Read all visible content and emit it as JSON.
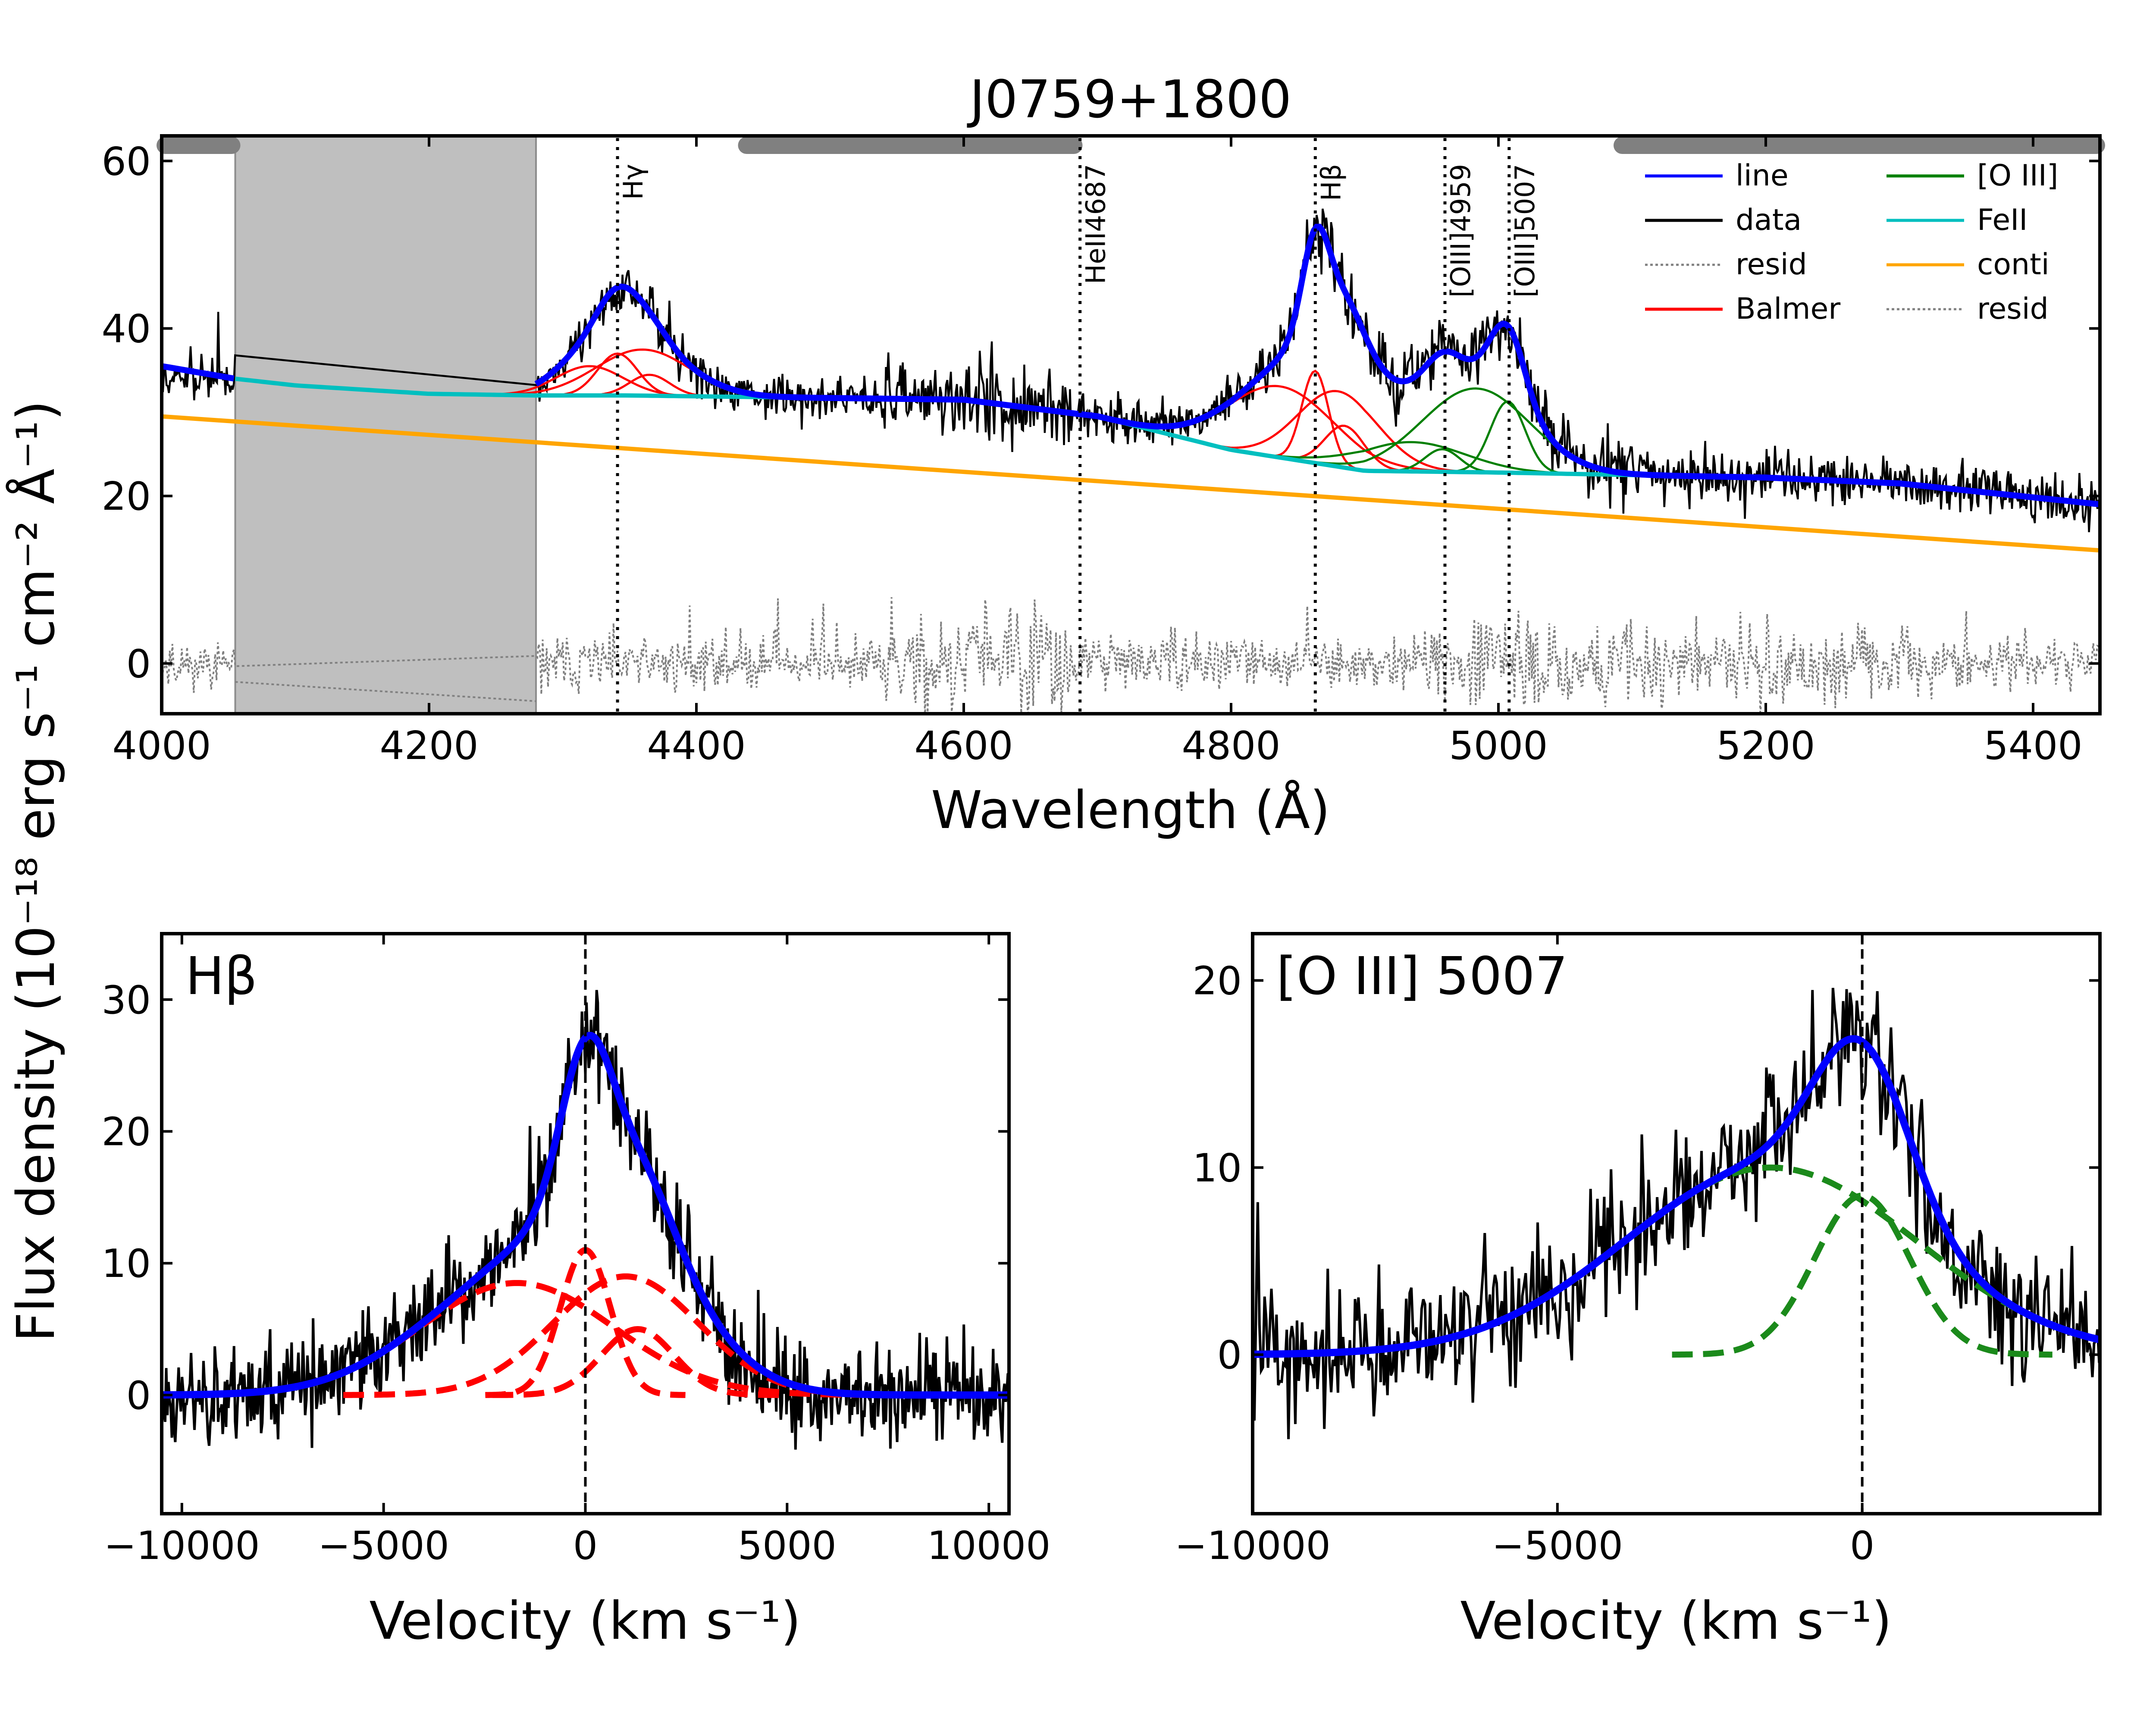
{
  "figure": {
    "shared_ylabel": "Flux density (10⁻¹⁸ erg s⁻¹ cm⁻² Å⁻¹)"
  },
  "chart_data": [
    {
      "id": "top",
      "type": "line",
      "title": "J0759+1800",
      "xlabel": "Wavelength (Å)",
      "ylabel": "",
      "xlim": [
        4000,
        5450
      ],
      "ylim": [
        -6,
        63
      ],
      "xticks": [
        4000,
        4200,
        4400,
        4600,
        4800,
        5000,
        5200,
        5400
      ],
      "yticks": [
        0,
        20,
        40,
        60
      ],
      "grid": false,
      "masked_region": [
        4055,
        4280
      ],
      "fit_windows": [
        [
          4000,
          4055
        ],
        [
          4435,
          4685
        ],
        [
          5090,
          5450
        ]
      ],
      "line_markers": [
        {
          "label": "Hγ",
          "x": 4341
        },
        {
          "label": "HeII4687",
          "x": 4687
        },
        {
          "label": "Hβ",
          "x": 4863
        },
        {
          "label": "[OIII]4959",
          "x": 4960
        },
        {
          "label": "[OIII]5007",
          "x": 5008
        }
      ],
      "legend": {
        "placement": "top-right",
        "entries": [
          {
            "label": "line",
            "color": "#0000ff",
            "style": "solid"
          },
          {
            "label": "data",
            "color": "#000000",
            "style": "solid"
          },
          {
            "label": "resid",
            "color": "#808080",
            "style": "dotted"
          },
          {
            "label": "Balmer",
            "color": "#ff0000",
            "style": "solid"
          },
          {
            "label": "[O III]",
            "color": "#008000",
            "style": "solid"
          },
          {
            "label": "FeII",
            "color": "#00bfbf",
            "style": "solid"
          },
          {
            "label": "conti",
            "color": "#ffa500",
            "style": "solid"
          },
          {
            "label": "resid",
            "color": "#808080",
            "style": "dotted"
          }
        ]
      },
      "components": {
        "continuum": {
          "x": [
            4000,
            5450
          ],
          "y": [
            29.5,
            13.5
          ],
          "color": "#ffa500"
        },
        "feii_pseudo_continuum": {
          "x": [
            4055,
            4100,
            4200,
            4280,
            4350,
            4450,
            4600,
            4700,
            4800,
            4900,
            5000,
            5100,
            5200,
            5300,
            5450
          ],
          "y": [
            34.0,
            33.2,
            32.2,
            32.0,
            32.0,
            31.8,
            31.5,
            29.5,
            25.5,
            23.0,
            22.8,
            22.5,
            22.2,
            21.5,
            19.0
          ],
          "color": "#00bfbf"
        },
        "balmer_gaussians": [
          {
            "line": "Hγ",
            "center": 4320,
            "amplitude": 3.5,
            "sigma": 25
          },
          {
            "line": "Hγ",
            "center": 4341,
            "amplitude": 5.0,
            "sigma": 15
          },
          {
            "line": "Hγ",
            "center": 4360,
            "amplitude": 5.5,
            "sigma": 35
          },
          {
            "line": "Hγ",
            "center": 4365,
            "amplitude": 2.5,
            "sigma": 15
          },
          {
            "line": "Hβ",
            "center": 4837,
            "amplitude": 8.5,
            "sigma": 40
          },
          {
            "line": "Hβ",
            "center": 4863,
            "amplitude": 11.0,
            "sigma": 10
          },
          {
            "line": "Hβ",
            "center": 4880,
            "amplitude": 9.0,
            "sigma": 30
          },
          {
            "line": "Hβ",
            "center": 4885,
            "amplitude": 5.0,
            "sigma": 15
          }
        ],
        "oiii_gaussians": [
          {
            "line": "[OIII]4959",
            "center": 4935,
            "amplitude": 3.5,
            "sigma": 40
          },
          {
            "line": "[OIII]4959",
            "center": 4958,
            "amplitude": 2.7,
            "sigma": 13
          },
          {
            "line": "[OIII]5007",
            "center": 4983,
            "amplitude": 10.0,
            "sigma": 40
          },
          {
            "line": "[OIII]5007",
            "center": 5007,
            "amplitude": 8.5,
            "sigma": 13
          }
        ]
      }
    },
    {
      "id": "hbeta",
      "type": "line",
      "title": "Hβ",
      "xlabel": "Velocity (km s⁻¹)",
      "ylabel": "",
      "xlim": [
        -10500,
        10500
      ],
      "ylim": [
        -9,
        35
      ],
      "xticks": [
        -10000,
        -5000,
        0,
        5000,
        10000
      ],
      "xtick_labels": [
        "−10000",
        "−5000",
        "0",
        "5000",
        "10000"
      ],
      "yticks": [
        0,
        10,
        20,
        30
      ],
      "grid": false,
      "zero_velocity_line": 0,
      "gaussians": [
        {
          "center": -1700,
          "amplitude": 8.5,
          "sigma": 2400
        },
        {
          "center": 0,
          "amplitude": 11.0,
          "sigma": 620
        },
        {
          "center": 1000,
          "amplitude": 9.0,
          "sigma": 1800
        },
        {
          "center": 1300,
          "amplitude": 5.0,
          "sigma": 900
        }
      ],
      "peak": {
        "x": 250,
        "y": 30
      }
    },
    {
      "id": "oiii",
      "type": "line",
      "title": "[O III] 5007",
      "xlabel": "Velocity (km s⁻¹)",
      "ylabel": "",
      "xlim": [
        -10000,
        3900
      ],
      "ylim": [
        -8.5,
        22.5
      ],
      "xticks": [
        -10000,
        -5000,
        0
      ],
      "xtick_labels": [
        "−10000",
        "−5000",
        "0"
      ],
      "yticks": [
        0,
        10,
        20
      ],
      "grid": false,
      "zero_velocity_line": 0,
      "gaussians": [
        {
          "center": -1500,
          "amplitude": 10.0,
          "sigma": 2400
        },
        {
          "center": 0,
          "amplitude": 8.5,
          "sigma": 780
        }
      ],
      "peak": {
        "x": 0,
        "y": 16.5
      }
    }
  ]
}
